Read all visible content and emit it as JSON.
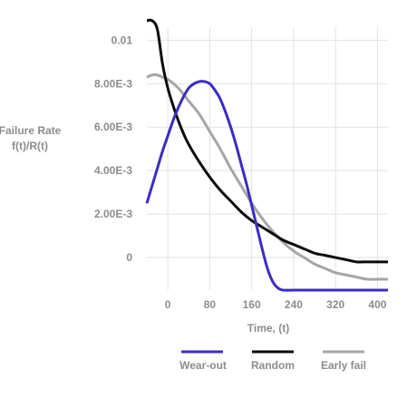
{
  "chart_data": {
    "type": "line",
    "title": "",
    "xlabel": "Time, (t)",
    "ylabel_line1": "Failure Rate",
    "ylabel_line2": "f(t)/R(t)",
    "xlim": [
      -40,
      420
    ],
    "ylim": [
      -0.0015,
      0.0106
    ],
    "grid": true,
    "legend_position": "bottom",
    "x_ticks": [
      "0",
      "80",
      "160",
      "240",
      "320",
      "400"
    ],
    "y_ticks": [
      "0",
      "2.00E-3",
      "4.00E-3",
      "6.00E-3",
      "8.00E-3",
      "0.01"
    ],
    "series": [
      {
        "name": "Wear-out",
        "color": "#3b2cc4",
        "x": [
          -40,
          -30,
          -20,
          -10,
          0,
          10,
          20,
          30,
          40,
          50,
          60,
          70,
          80,
          90,
          100,
          110,
          120,
          130,
          140,
          150,
          160,
          170,
          180,
          190,
          200,
          210,
          220,
          240,
          260,
          300,
          340,
          380,
          420
        ],
        "y": [
          0.0025,
          0.0033,
          0.0041,
          0.0049,
          0.0056,
          0.0063,
          0.0069,
          0.0074,
          0.0078,
          0.008,
          0.0081,
          0.0081,
          0.008,
          0.0077,
          0.0073,
          0.0067,
          0.006,
          0.0052,
          0.0043,
          0.0034,
          0.0024,
          0.0014,
          0.0004,
          -0.0005,
          -0.0011,
          -0.0014,
          -0.0015,
          -0.0015,
          -0.0015,
          -0.0015,
          -0.0015,
          -0.0015,
          -0.0015
        ]
      },
      {
        "name": "Random",
        "color": "#0a0a0a",
        "x": [
          -40,
          -30,
          -20,
          -10,
          0,
          10,
          20,
          30,
          40,
          60,
          80,
          100,
          120,
          140,
          160,
          180,
          200,
          220,
          240,
          260,
          280,
          300,
          320,
          340,
          360,
          380,
          400,
          420
        ],
        "y": [
          0.0109,
          0.0109,
          0.0105,
          0.0089,
          0.0078,
          0.007,
          0.0063,
          0.0057,
          0.0052,
          0.0044,
          0.0037,
          0.0031,
          0.0026,
          0.0021,
          0.0017,
          0.0014,
          0.0011,
          0.0008,
          0.0006,
          0.0004,
          0.0002,
          0.0001,
          0.0,
          -0.0001,
          -0.0002,
          -0.0002,
          -0.0002,
          -0.0002
        ]
      },
      {
        "name": "Early fail",
        "color": "#a6a6a6",
        "x": [
          -40,
          -30,
          -20,
          -10,
          0,
          20,
          40,
          60,
          80,
          100,
          120,
          140,
          160,
          180,
          200,
          220,
          240,
          260,
          280,
          300,
          320,
          340,
          360,
          380,
          400,
          420
        ],
        "y": [
          0.0083,
          0.0084,
          0.0084,
          0.0083,
          0.0082,
          0.0078,
          0.0072,
          0.0066,
          0.0058,
          0.005,
          0.0041,
          0.0033,
          0.0025,
          0.0018,
          0.0012,
          0.0007,
          0.0003,
          0.0,
          -0.0003,
          -0.0005,
          -0.0007,
          -0.0008,
          -0.0009,
          -0.001,
          -0.001,
          -0.001
        ]
      }
    ]
  }
}
